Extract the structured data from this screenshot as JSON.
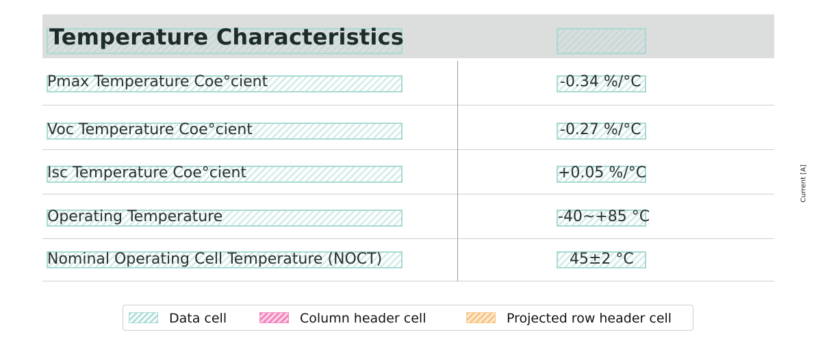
{
  "table": {
    "title": "Temperature Characteristics",
    "rows": [
      {
        "label": "Pmax Temperature Coe°cient",
        "value": "-0.34 %/°C"
      },
      {
        "label": "Voc Temperature Coe°cient",
        "value": "-0.27 %/°C"
      },
      {
        "label": "Isc Temperature Coe°cient",
        "value": "+0.05 %/°C"
      },
      {
        "label": "Operating Temperature",
        "value": "-40~+85 °C"
      },
      {
        "label": "Nominal Operating Cell Temperature (NOCT)",
        "value": "45±2 °C"
      }
    ]
  },
  "side_label": "Current [A]",
  "legend": {
    "items": [
      {
        "label": "Data cell",
        "color": "#a8dad4"
      },
      {
        "label": "Column header cell",
        "color": "#f08cbf"
      },
      {
        "label": "Projected row header cell",
        "color": "#f8c98a"
      }
    ]
  },
  "colors": {
    "header_band": "#dcdddd",
    "data_cell": "#a8dad4",
    "text": "#2a2f2f"
  }
}
